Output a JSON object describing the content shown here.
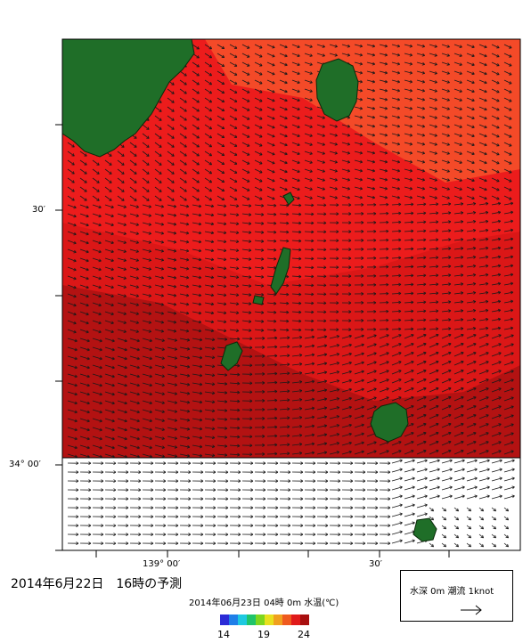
{
  "map": {
    "lat_labels": [
      "30′",
      "34° 00′"
    ],
    "lon_labels": [
      "139° 00′",
      "30′"
    ]
  },
  "forecast_title": "2014年6月22日　16時の予測",
  "info_line": "2014年06月23日 04時 0m 水温(℃)",
  "legend": {
    "text": "水深 0m 潮流 1knot",
    "arrow_icon": "arrow-right-icon"
  },
  "colorbar": {
    "ticks": [
      "14",
      "19",
      "24"
    ],
    "min": 14,
    "max": 24,
    "colors": [
      "#2b2bd6",
      "#1f7fe8",
      "#1ec9e0",
      "#1fc46a",
      "#7ed61e",
      "#e8e01e",
      "#f0a01e",
      "#ef5a1e",
      "#e01a1a",
      "#a80f0f"
    ]
  },
  "colors": {
    "land": "#1f6e28",
    "sea_main": "#ec1c1c",
    "sea_light": "#f44a28",
    "sea_dark": "#b31212"
  }
}
